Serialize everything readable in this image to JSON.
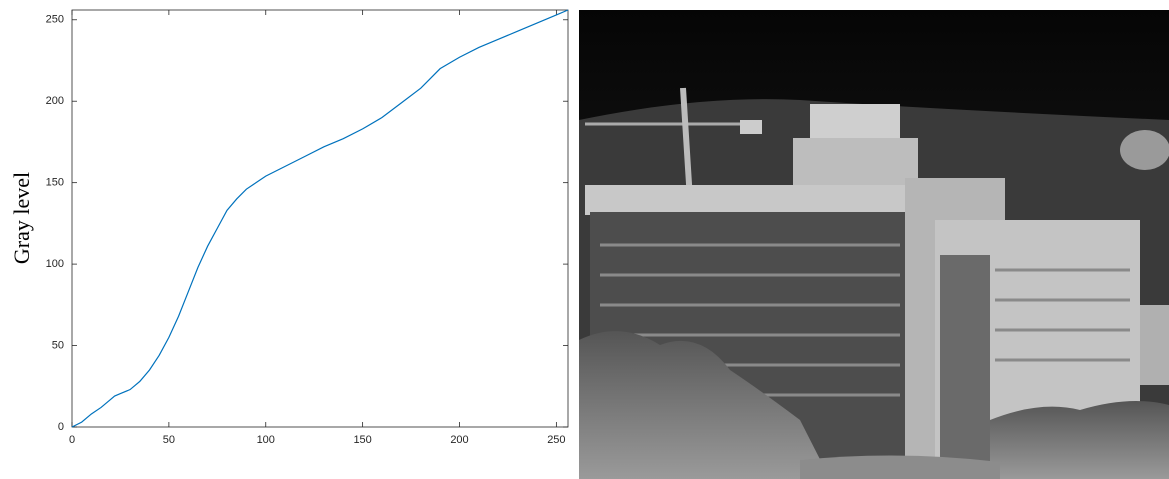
{
  "chart_data": {
    "type": "line",
    "y_label": "Gray level",
    "x": [
      0,
      5,
      10,
      15,
      20,
      22,
      25,
      30,
      35,
      40,
      45,
      50,
      55,
      60,
      65,
      70,
      75,
      80,
      85,
      90,
      95,
      100,
      110,
      120,
      130,
      140,
      150,
      160,
      170,
      180,
      185,
      190,
      200,
      210,
      220,
      230,
      240,
      250,
      256
    ],
    "values": [
      0,
      3,
      8,
      12,
      17,
      19,
      20.5,
      23,
      28,
      35,
      44,
      55,
      68,
      83,
      98,
      111,
      122,
      133,
      140,
      146,
      150,
      154,
      160,
      166,
      172,
      177,
      183,
      190,
      199,
      208,
      214,
      220,
      227,
      233,
      238,
      243,
      248,
      253,
      256
    ],
    "color": "#0072bd",
    "xlim": [
      0,
      256
    ],
    "xticks": [
      0,
      50,
      100,
      150,
      200,
      250
    ],
    "ylim": [
      0,
      256
    ],
    "yticks": [
      0,
      50,
      100,
      150,
      200,
      250
    ]
  }
}
